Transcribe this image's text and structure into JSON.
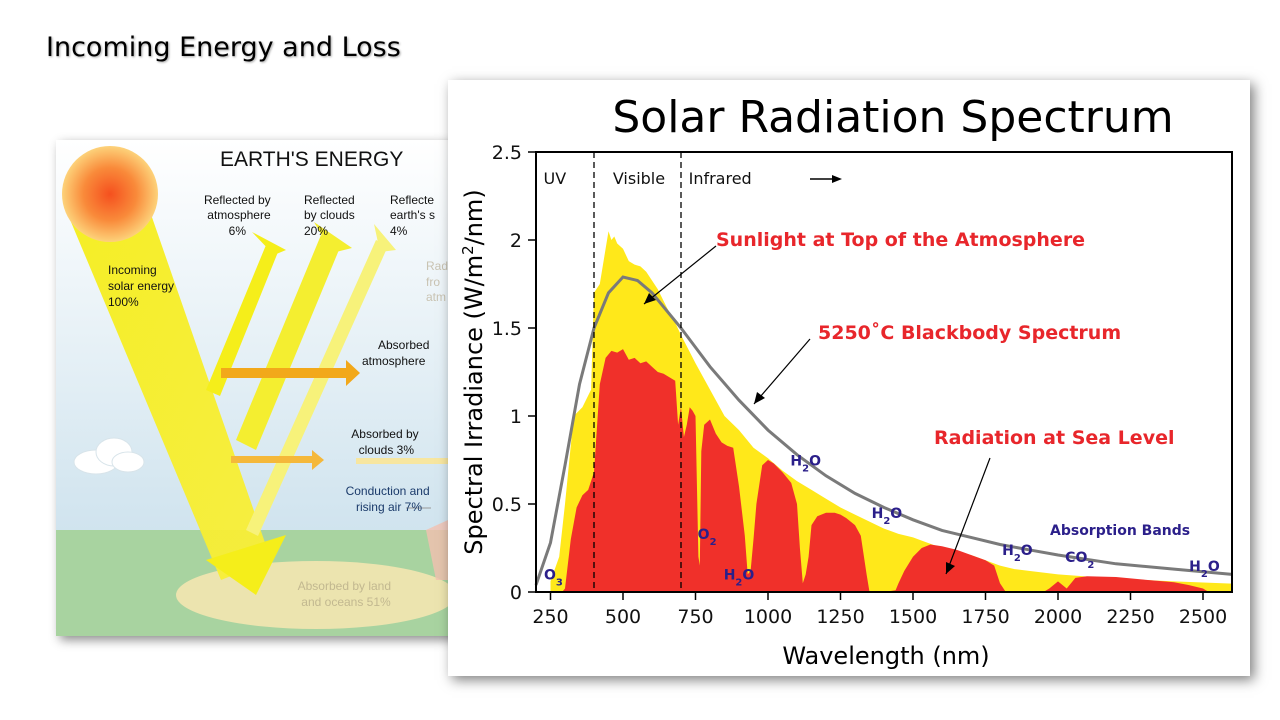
{
  "slide": {
    "title": "Incoming Energy and Loss"
  },
  "energy_diagram": {
    "title": "EARTH'S ENERGY",
    "incoming": [
      "Incoming",
      "solar energy",
      "100%"
    ],
    "reflected_atmosphere": [
      "Reflected by",
      "atmosphere",
      "6%"
    ],
    "reflected_clouds": [
      "Reflected",
      "by clouds",
      "20%"
    ],
    "reflected_surface": [
      "Reflecte",
      "earth's s",
      "4%"
    ],
    "radiated": [
      "Rad",
      "fro",
      "atm"
    ],
    "absorbed_atmosphere": [
      "Absorbed",
      "atmosphere"
    ],
    "absorbed_clouds": [
      "Absorbed by",
      "clouds 3%"
    ],
    "conduction": [
      "Conduction and",
      "rising air 7%"
    ],
    "absorbed_land": [
      "Absorbed by land",
      "and oceans 51%"
    ],
    "colors": {
      "beam": "#f5ee1a",
      "beam_light": "#fbf77a",
      "sun_core": "#f5501e",
      "sun_outer": "#fdd27a",
      "arrow_orange": "#f2a81a",
      "sky_top": "#ffffff",
      "sky_bottom": "#cfe3ee",
      "ground": "#a8d3a0"
    }
  },
  "chart_data": {
    "type": "area",
    "title": "Solar Radiation Spectrum",
    "xlabel": "Wavelength (nm)",
    "ylabel": "Spectral Irradiance (W/m²/nm)",
    "ylabel_parts": [
      "Spectral Irradiance (W/m",
      "2",
      "/nm)"
    ],
    "xlim": [
      200,
      2600
    ],
    "ylim": [
      0,
      2.5
    ],
    "x_ticks": [
      250,
      500,
      750,
      1000,
      1250,
      1500,
      1750,
      2000,
      2250,
      2500
    ],
    "y_ticks": [
      0,
      0.5,
      1,
      1.5,
      2,
      2.5
    ],
    "y_tick_labels": [
      "0",
      "0.5",
      "1",
      "1.5",
      "2",
      "2.5"
    ],
    "grid": false,
    "regions": [
      {
        "label": "UV",
        "x": 265
      },
      {
        "label": "Visible",
        "x": 400,
        "divider": true
      },
      {
        "label": "Infrared",
        "x": 700,
        "divider": true
      }
    ],
    "series": [
      {
        "name": "Sunlight at Top of the Atmosphere",
        "color": "#ffe81a",
        "x": [
          250,
          280,
          300,
          330,
          360,
          390,
          400,
          420,
          440,
          450,
          460,
          470,
          480,
          500,
          520,
          540,
          560,
          580,
          600,
          620,
          650,
          680,
          700,
          750,
          800,
          850,
          900,
          950,
          1000,
          1050,
          1100,
          1150,
          1200,
          1250,
          1300,
          1350,
          1400,
          1450,
          1500,
          1550,
          1600,
          1650,
          1700,
          1750,
          1800,
          1850,
          1900,
          2000,
          2100,
          2200,
          2300,
          2400,
          2500,
          2600
        ],
        "y": [
          0.06,
          0.2,
          0.5,
          1.0,
          1.05,
          1.15,
          1.7,
          1.75,
          1.95,
          2.05,
          2.0,
          2.02,
          1.98,
          1.95,
          1.88,
          1.86,
          1.85,
          1.82,
          1.77,
          1.72,
          1.62,
          1.53,
          1.46,
          1.3,
          1.15,
          1.0,
          0.92,
          0.82,
          0.76,
          0.69,
          0.63,
          0.58,
          0.53,
          0.48,
          0.44,
          0.4,
          0.36,
          0.33,
          0.31,
          0.28,
          0.25,
          0.23,
          0.21,
          0.18,
          0.15,
          0.13,
          0.12,
          0.1,
          0.088,
          0.078,
          0.068,
          0.06,
          0.054,
          0.048
        ]
      },
      {
        "name": "5250˚C Blackbody Spectrum",
        "color": "#7a7a7a",
        "x": [
          200,
          250,
          300,
          350,
          400,
          450,
          500,
          550,
          600,
          650,
          700,
          800,
          900,
          1000,
          1100,
          1200,
          1300,
          1400,
          1500,
          1600,
          1700,
          1800,
          1900,
          2000,
          2200,
          2400,
          2600
        ],
        "y": [
          0.04,
          0.28,
          0.72,
          1.18,
          1.5,
          1.7,
          1.79,
          1.77,
          1.7,
          1.6,
          1.5,
          1.28,
          1.09,
          0.92,
          0.78,
          0.66,
          0.56,
          0.48,
          0.41,
          0.35,
          0.31,
          0.27,
          0.24,
          0.21,
          0.16,
          0.13,
          0.1
        ]
      },
      {
        "name": "Radiation at Sea Level",
        "color": "#f0302a",
        "x": [
          290,
          300,
          320,
          340,
          360,
          380,
          400,
          420,
          440,
          460,
          480,
          500,
          520,
          540,
          560,
          580,
          600,
          620,
          640,
          660,
          680,
          690,
          700,
          710,
          720,
          730,
          740,
          750,
          760,
          765,
          770,
          780,
          800,
          820,
          840,
          860,
          880,
          900,
          920,
          930,
          940,
          950,
          960,
          980,
          1000,
          1020,
          1050,
          1080,
          1100,
          1110,
          1120,
          1130,
          1140,
          1150,
          1170,
          1200,
          1230,
          1250,
          1270,
          1300,
          1320,
          1340,
          1350,
          1360,
          1400,
          1440,
          1450,
          1470,
          1500,
          1530,
          1560,
          1600,
          1650,
          1700,
          1750,
          1780,
          1800,
          1820,
          1950,
          1970,
          2000,
          2030,
          2060,
          2100,
          2200,
          2300,
          2400,
          2450,
          2500,
          2520
        ],
        "y": [
          0,
          0.02,
          0.3,
          0.48,
          0.55,
          0.58,
          0.68,
          1.18,
          1.33,
          1.37,
          1.36,
          1.38,
          1.32,
          1.33,
          1.3,
          1.31,
          1.28,
          1.25,
          1.24,
          1.22,
          1.2,
          0.95,
          1.05,
          0.88,
          0.95,
          1.05,
          1.03,
          1.0,
          0.2,
          0.15,
          0.8,
          0.95,
          0.98,
          0.9,
          0.85,
          0.83,
          0.82,
          0.6,
          0.32,
          0.1,
          0.12,
          0.3,
          0.5,
          0.72,
          0.75,
          0.73,
          0.68,
          0.62,
          0.5,
          0.25,
          0.05,
          0.1,
          0.2,
          0.38,
          0.43,
          0.45,
          0.45,
          0.44,
          0.42,
          0.38,
          0.32,
          0.1,
          0.0,
          0.0,
          0.0,
          0.01,
          0.05,
          0.12,
          0.2,
          0.25,
          0.27,
          0.26,
          0.24,
          0.21,
          0.18,
          0.15,
          0.05,
          0.0,
          0.0,
          0.02,
          0.06,
          0.02,
          0.08,
          0.09,
          0.085,
          0.07,
          0.055,
          0.04,
          0.02,
          0.0
        ]
      }
    ],
    "annotations": [
      {
        "text": "Sunlight at Top of the Atmosphere",
        "style": "red"
      },
      {
        "text": "5250˚C Blackbody Spectrum",
        "style": "red"
      },
      {
        "text": "Radiation at Sea Level",
        "style": "red"
      },
      {
        "text": "Absorption Bands",
        "style": "gas"
      }
    ],
    "absorption_labels": [
      {
        "base": "O",
        "sub": "3",
        "x": 260,
        "y": 0.07
      },
      {
        "base": "O",
        "sub": "2",
        "x": 790,
        "y": 0.3
      },
      {
        "base": "H",
        "sub": "2",
        "tail": "O",
        "x": 900,
        "y": 0.07
      },
      {
        "base": "H",
        "sub": "2",
        "tail": "O",
        "x": 1130,
        "y": 0.72
      },
      {
        "base": "H",
        "sub": "2",
        "tail": "O",
        "x": 1410,
        "y": 0.42
      },
      {
        "base": "H",
        "sub": "2",
        "tail": "O",
        "x": 1860,
        "y": 0.21
      },
      {
        "base": "CO",
        "sub": "2",
        "x": 2075,
        "y": 0.17
      },
      {
        "base": "H",
        "sub": "2",
        "tail": "O",
        "x": 2505,
        "y": 0.12
      }
    ]
  }
}
